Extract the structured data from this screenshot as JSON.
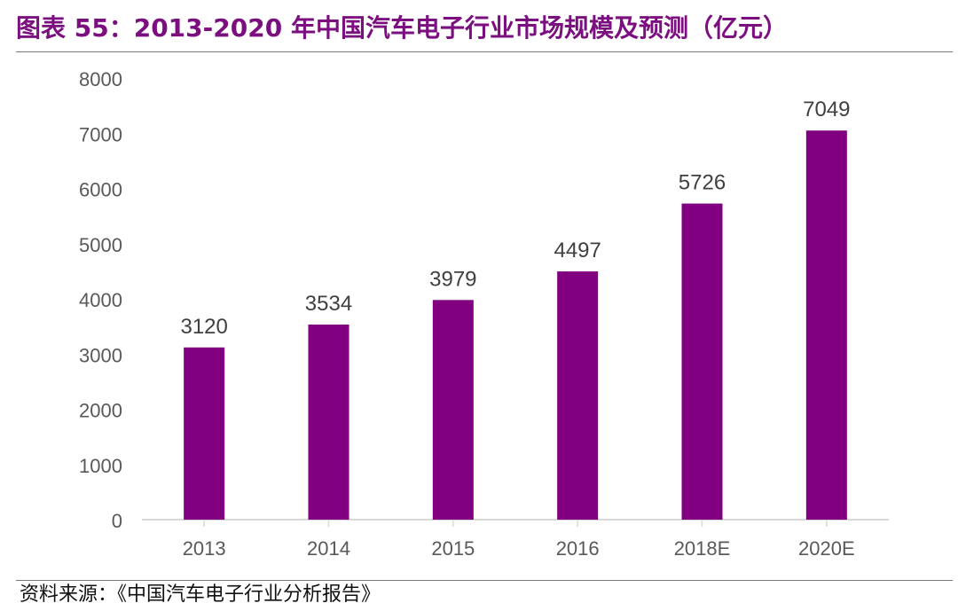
{
  "header": {
    "title": "图表 55：2013-2020 年中国汽车电子行业市场规模及预测（亿元）"
  },
  "footer": {
    "source": "资料来源：《中国汽车电子行业分析报告》"
  },
  "colors": {
    "bar": "#800080",
    "title": "#7B0F7F",
    "axis": "#d9d9d9",
    "text": "#595959",
    "label": "#404040"
  },
  "chart_data": {
    "type": "bar",
    "title": "",
    "xlabel": "",
    "ylabel": "",
    "categories": [
      "2013",
      "2014",
      "2015",
      "2016",
      "2018E",
      "2020E"
    ],
    "values": [
      3120,
      3534,
      3979,
      4497,
      5726,
      7049
    ],
    "ylim": [
      0,
      8000
    ],
    "yticks": [
      0,
      1000,
      2000,
      3000,
      4000,
      5000,
      6000,
      7000,
      8000
    ],
    "grid": false,
    "legend": "none",
    "data_labels": true
  }
}
